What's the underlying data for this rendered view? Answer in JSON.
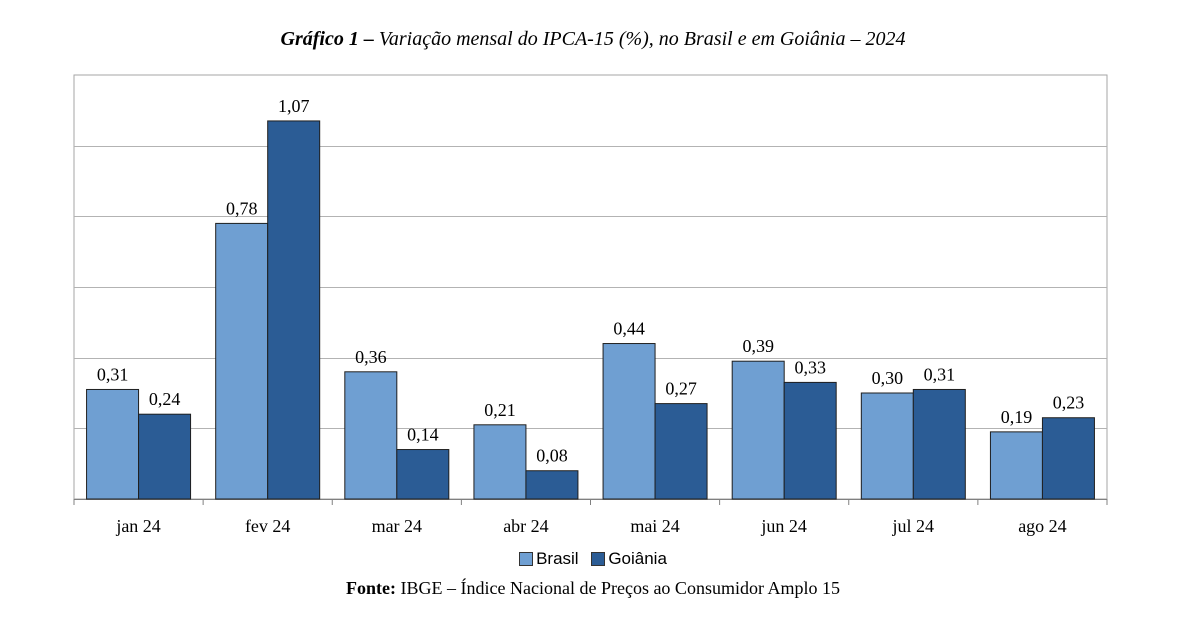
{
  "title": {
    "prefix": "Gráfico 1 –",
    "text": "Variação mensal do IPCA-15 (%), no Brasil e em Goiânia – 2024"
  },
  "source": {
    "label": "Fonte:",
    "text": "IBGE – Índice Nacional de Preços ao Consumidor Amplo 15"
  },
  "chart_data": {
    "type": "bar",
    "categories": [
      "jan 24",
      "fev 24",
      "mar 24",
      "abr 24",
      "mai 24",
      "jun 24",
      "jul 24",
      "ago 24"
    ],
    "series": [
      {
        "name": "Brasil",
        "color": "#6f9fd2",
        "values": [
          0.31,
          0.78,
          0.36,
          0.21,
          0.44,
          0.39,
          0.3,
          0.19
        ],
        "labels": [
          "0,31",
          "0,78",
          "0,36",
          "0,21",
          "0,44",
          "0,39",
          "0,30",
          "0,19"
        ]
      },
      {
        "name": "Goiânia",
        "color": "#2b5c95",
        "values": [
          0.24,
          1.07,
          0.14,
          0.08,
          0.27,
          0.33,
          0.31,
          0.23
        ],
        "labels": [
          "0,24",
          "1,07",
          "0,14",
          "0,08",
          "0,27",
          "0,33",
          "0,31",
          "0,23"
        ]
      }
    ],
    "ylim": [
      0,
      1.2
    ],
    "gridlines": [
      0.2,
      0.4,
      0.6,
      0.8,
      1.0
    ],
    "grid": true,
    "legend_position": "bottom"
  }
}
